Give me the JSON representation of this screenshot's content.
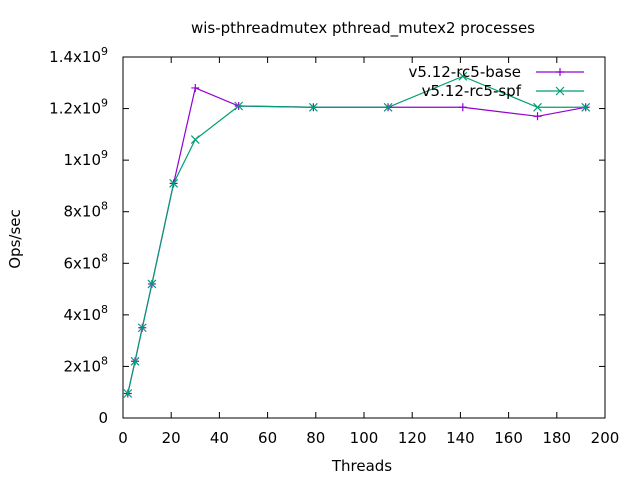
{
  "chart_data": {
    "type": "line",
    "title": "wis-pthreadmutex pthread_mutex2 processes",
    "xlabel": "Threads",
    "ylabel": "Ops/sec",
    "xlim": [
      0,
      200
    ],
    "ylim": [
      0,
      1400000000
    ],
    "x_ticks": [
      "0",
      "20",
      "40",
      "60",
      "80",
      "100",
      "120",
      "140",
      "160",
      "180",
      "200"
    ],
    "y_ticks": [
      {
        "value": 0,
        "mant": "0",
        "exp": ""
      },
      {
        "value": 200000000,
        "mant": "2x10",
        "exp": "8"
      },
      {
        "value": 400000000,
        "mant": "4x10",
        "exp": "8"
      },
      {
        "value": 600000000,
        "mant": "6x10",
        "exp": "8"
      },
      {
        "value": 800000000,
        "mant": "8x10",
        "exp": "8"
      },
      {
        "value": 1000000000,
        "mant": "1x10",
        "exp": "9"
      },
      {
        "value": 1200000000,
        "mant": "1.2x10",
        "exp": "9"
      },
      {
        "value": 1400000000,
        "mant": "1.4x10",
        "exp": "9"
      }
    ],
    "grid": false,
    "legend_position": "top-right",
    "x": [
      2,
      5,
      8,
      12,
      21,
      30,
      48,
      79,
      110,
      141,
      172,
      192
    ],
    "series": [
      {
        "name": "v5.12-rc5-base",
        "color": "#9400d3",
        "marker": "plus",
        "values": [
          95000000,
          220000000,
          350000000,
          520000000,
          910000000,
          1280000000,
          1210000000,
          1205000000,
          1205000000,
          1205000000,
          1170000000,
          1205000000
        ]
      },
      {
        "name": "v5.12-rc5-spf",
        "color": "#009e73",
        "marker": "cross",
        "values": [
          95000000,
          220000000,
          350000000,
          520000000,
          910000000,
          1080000000,
          1210000000,
          1205000000,
          1205000000,
          1325000000,
          1205000000,
          1205000000
        ]
      }
    ]
  }
}
